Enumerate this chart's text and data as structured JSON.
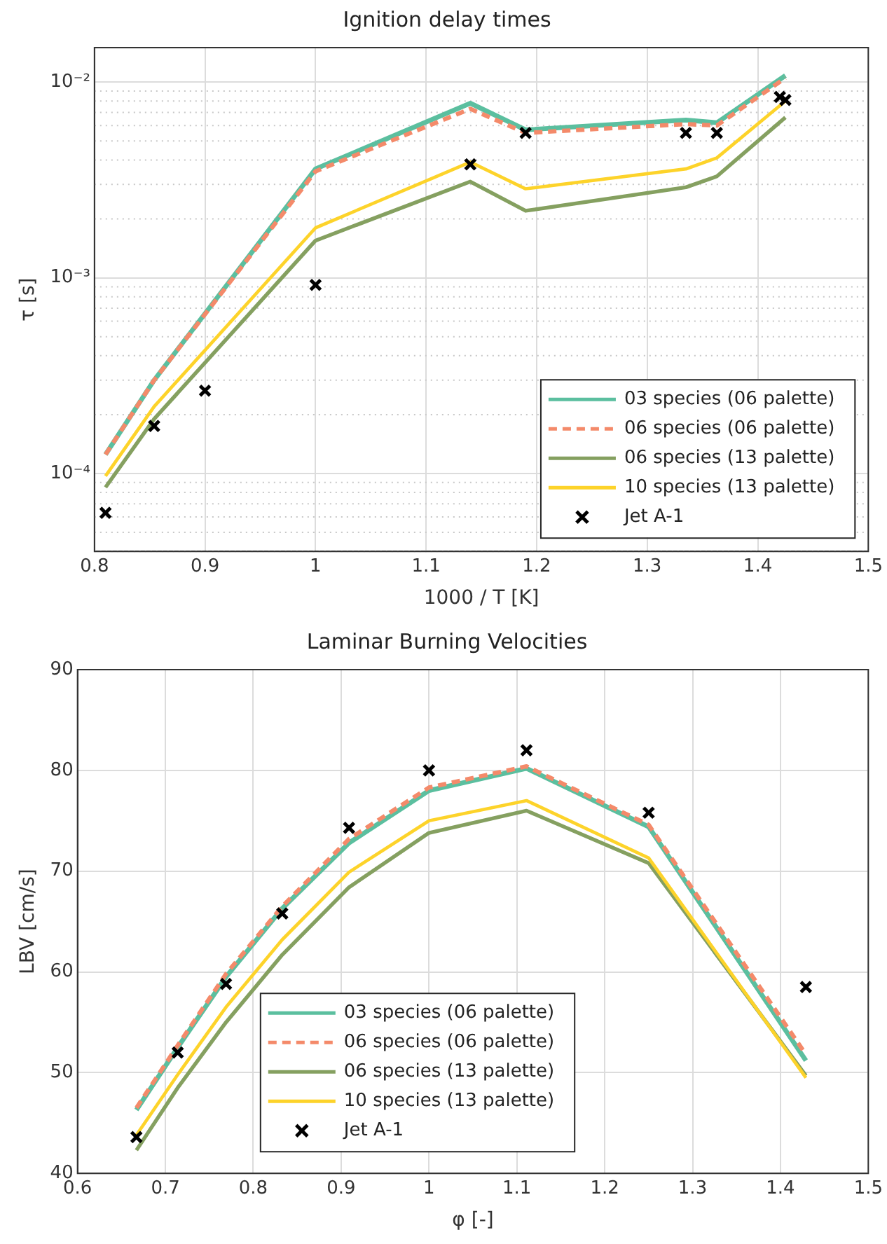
{
  "chart_data": [
    {
      "type": "line",
      "title": "Ignition delay times",
      "xlabel": "1000 / T [K]",
      "ylabel": "τ [s]",
      "log": "y",
      "grid": true,
      "legend": "bottom right",
      "xlim": [
        0.8,
        1.5
      ],
      "xticks": [
        0.8,
        0.9,
        1,
        1.1,
        1.2,
        1.3,
        1.4,
        1.5
      ],
      "ylim": [
        4e-05,
        0.015
      ],
      "yticks": [
        {
          "value": 0.0001,
          "label": "10⁻⁴"
        },
        {
          "value": 0.001,
          "label": "10⁻³"
        },
        {
          "value": 0.01,
          "label": "10⁻²"
        }
      ],
      "series": [
        {
          "name": "03 species (06 palette)",
          "color": "#5bbf9f",
          "marker": "none",
          "line_style": "solid",
          "x": [
            0.81,
            0.854,
            1.0,
            1.14,
            1.19,
            1.335,
            1.363,
            1.425
          ],
          "values": [
            0.000125,
            0.0003,
            0.0036,
            0.0078,
            0.0057,
            0.0064,
            0.0062,
            0.0108
          ]
        },
        {
          "name": "06 species (06 palette)",
          "color": "#f48a6a",
          "marker": "none",
          "line_style": "dashed",
          "x": [
            0.81,
            0.854,
            1.0,
            1.14,
            1.19,
            1.335,
            1.363,
            1.425
          ],
          "values": [
            0.000125,
            0.0003,
            0.0035,
            0.0073,
            0.0055,
            0.0061,
            0.006,
            0.0105
          ]
        },
        {
          "name": "06 species (13 palette)",
          "color": "#85a060",
          "marker": "none",
          "line_style": "solid",
          "x": [
            0.81,
            0.854,
            1.0,
            1.14,
            1.19,
            1.335,
            1.363,
            1.425
          ],
          "values": [
            8.5e-05,
            0.00019,
            0.00155,
            0.0031,
            0.0022,
            0.0029,
            0.0033,
            0.0066
          ]
        },
        {
          "name": "10 species (13 palette)",
          "color": "#fdd32a",
          "marker": "none",
          "line_style": "solid",
          "x": [
            0.81,
            0.854,
            1.0,
            1.14,
            1.19,
            1.335,
            1.363,
            1.425
          ],
          "values": [
            9.7e-05,
            0.00022,
            0.0018,
            0.0039,
            0.00285,
            0.0036,
            0.0041,
            0.008
          ]
        },
        {
          "name": "Jet A-1",
          "type": "scatter",
          "color": "#000000",
          "marker": "cross",
          "x": [
            0.81,
            0.854,
            0.9,
            1.0,
            1.14,
            1.19,
            1.335,
            1.363,
            1.42,
            1.425
          ],
          "values": [
            6.3e-05,
            0.000175,
            0.000265,
            0.00092,
            0.0038,
            0.0055,
            0.0055,
            0.0055,
            0.0084,
            0.0081
          ]
        }
      ]
    },
    {
      "type": "line",
      "title": "Laminar Burning Velocities",
      "xlabel": "φ [-]",
      "ylabel": "LBV [cm/s]",
      "grid": true,
      "legend": "bottom",
      "xlim": [
        0.6,
        1.5
      ],
      "xticks": [
        0.6,
        0.7,
        0.8,
        0.9,
        1,
        1.1,
        1.2,
        1.3,
        1.4,
        1.5
      ],
      "ylim": [
        40,
        90
      ],
      "yticks": [
        40,
        50,
        60,
        70,
        80,
        90
      ],
      "series": [
        {
          "name": "03 species (06 palette)",
          "color": "#5bbf9f",
          "marker": "none",
          "line_style": "solid",
          "x": [
            0.667,
            0.714,
            0.769,
            0.833,
            0.909,
            1.0,
            1.111,
            1.25,
            1.429
          ],
          "values": [
            46.3,
            52.5,
            59.5,
            66.3,
            72.8,
            78.0,
            80.2,
            74.4,
            51.2
          ]
        },
        {
          "name": "06 species (06 palette)",
          "color": "#f48a6a",
          "marker": "none",
          "line_style": "dashed",
          "x": [
            0.667,
            0.714,
            0.769,
            0.833,
            0.909,
            1.0,
            1.111,
            1.25,
            1.429
          ],
          "values": [
            46.5,
            52.7,
            59.8,
            66.5,
            73.2,
            78.3,
            80.4,
            74.6,
            51.8
          ]
        },
        {
          "name": "06 species (13 palette)",
          "color": "#85a060",
          "marker": "none",
          "line_style": "solid",
          "x": [
            0.667,
            0.714,
            0.769,
            0.833,
            0.909,
            1.0,
            1.111,
            1.25,
            1.429
          ],
          "values": [
            42.3,
            48.5,
            55.0,
            61.7,
            68.4,
            73.8,
            76.0,
            70.8,
            49.7
          ]
        },
        {
          "name": "10 species (13 palette)",
          "color": "#fdd32a",
          "marker": "none",
          "line_style": "solid",
          "x": [
            0.667,
            0.714,
            0.769,
            0.833,
            0.909,
            1.0,
            1.111,
            1.25,
            1.429
          ],
          "values": [
            43.8,
            49.8,
            56.5,
            63.2,
            69.9,
            75.0,
            77.0,
            71.3,
            49.5
          ]
        },
        {
          "name": "Jet A-1",
          "type": "scatter",
          "color": "#000000",
          "marker": "cross",
          "x": [
            0.667,
            0.714,
            0.769,
            0.833,
            0.909,
            1.0,
            1.111,
            1.25,
            1.429
          ],
          "values": [
            43.6,
            52.0,
            58.8,
            65.8,
            74.3,
            80.0,
            82.0,
            75.8,
            58.5
          ]
        }
      ]
    }
  ]
}
